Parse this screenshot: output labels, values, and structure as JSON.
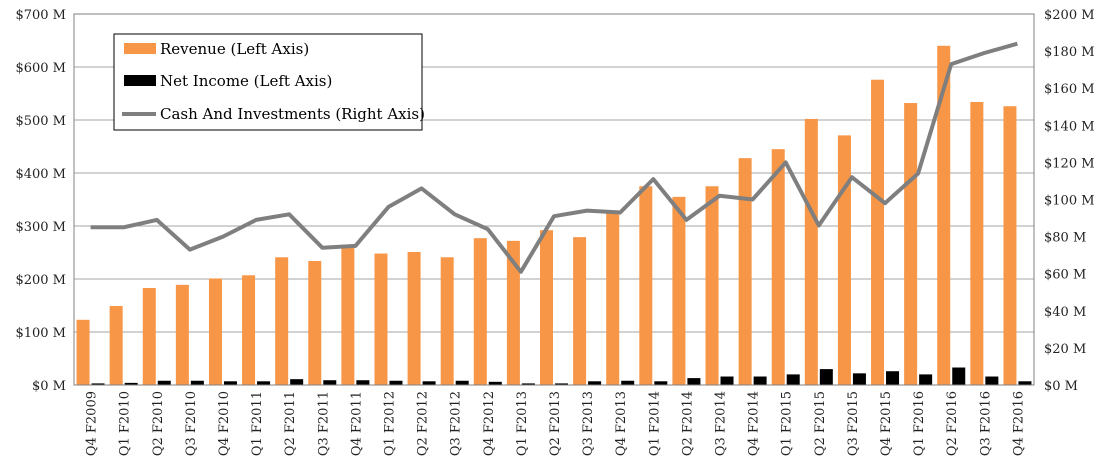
{
  "chart_data": {
    "type": "bar+line",
    "categories": [
      "Q4 F2009",
      "Q1 F2010",
      "Q2 F2010",
      "Q3 F2010",
      "Q4 F2010",
      "Q1 F2011",
      "Q2 F2011",
      "Q3 F2011",
      "Q4 F2011",
      "Q1 F2012",
      "Q2 F2012",
      "Q3 F2012",
      "Q4 F2012",
      "Q1 F2013",
      "Q2 F2013",
      "Q3 F2013",
      "Q4 F2013",
      "Q1 F2014",
      "Q2 F2014",
      "Q3 F2014",
      "Q4 F2014",
      "Q1 F2015",
      "Q2 F2015",
      "Q3 F2015",
      "Q4 F2015",
      "Q1 F2016",
      "Q2 F2016",
      "Q3 F2016",
      "Q4 F2016"
    ],
    "series": [
      {
        "name": "Revenue (Left Axis)",
        "type": "bar",
        "axis": "left",
        "color": "#f79646",
        "values": [
          123,
          149,
          183,
          189,
          201,
          207,
          241,
          234,
          260,
          248,
          251,
          241,
          277,
          272,
          292,
          279,
          324,
          375,
          355,
          375,
          428,
          445,
          502,
          471,
          576,
          532,
          640,
          534,
          526
        ]
      },
      {
        "name": "Net Income (Left Axis)",
        "type": "bar",
        "axis": "left",
        "color": "#000000",
        "values": [
          3,
          4,
          8,
          8,
          7,
          7,
          11,
          9,
          9,
          8,
          7,
          8,
          6,
          3,
          3,
          7,
          8,
          7,
          13,
          16,
          16,
          20,
          30,
          22,
          26,
          20,
          33,
          16,
          7
        ]
      },
      {
        "name": "Cash And Investments (Right Axis)",
        "type": "line",
        "axis": "right",
        "color": "#7f7f7f",
        "values": [
          85,
          85,
          89,
          73,
          80,
          89,
          92,
          74,
          75,
          96,
          106,
          92,
          84,
          61,
          91,
          94,
          93,
          111,
          89,
          102,
          100,
          120,
          86,
          112,
          98,
          114,
          173,
          179,
          184
        ]
      }
    ],
    "left_axis": {
      "min": 0,
      "max": 700,
      "step": 100,
      "tick_labels": [
        "$0 M",
        "$100 M",
        "$200 M",
        "$300 M",
        "$400 M",
        "$500 M",
        "$600 M",
        "$700 M"
      ]
    },
    "right_axis": {
      "min": 0,
      "max": 200,
      "step": 20,
      "tick_labels": [
        "$0 M",
        "$20 M",
        "$40 M",
        "$60 M",
        "$80 M",
        "$100 M",
        "$120 M",
        "$140 M",
        "$160 M",
        "$180 M",
        "$200 M"
      ]
    },
    "grid": true,
    "legend_position": "top-left"
  }
}
